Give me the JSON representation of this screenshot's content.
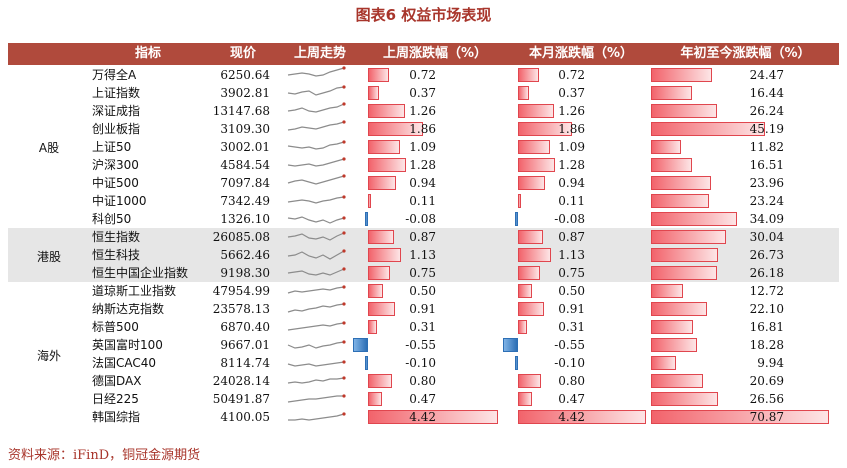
{
  "title": "图表6  权益市场表现",
  "headers": {
    "index": "指标",
    "price": "现价",
    "trend": "上周走势",
    "weekly": "上周涨跌幅（%）",
    "monthly": "本月涨跌幅（%）",
    "ytd": "年初至今涨跌幅（%）"
  },
  "groups": [
    "A股",
    "港股",
    "海外"
  ],
  "rows": [
    {
      "name": "万得全A",
      "price": "6250.64",
      "weekly": "0.72",
      "monthly": "0.72",
      "ytd": "24.47"
    },
    {
      "name": "上证指数",
      "price": "3902.81",
      "weekly": "0.37",
      "monthly": "0.37",
      "ytd": "16.44"
    },
    {
      "name": "深证成指",
      "price": "13147.68",
      "weekly": "1.26",
      "monthly": "1.26",
      "ytd": "26.24"
    },
    {
      "name": "创业板指",
      "price": "3109.30",
      "weekly": "1.86",
      "monthly": "1.86",
      "ytd": "45.19"
    },
    {
      "name": "上证50",
      "price": "3002.01",
      "weekly": "1.09",
      "monthly": "1.09",
      "ytd": "11.82"
    },
    {
      "name": "沪深300",
      "price": "4584.54",
      "weekly": "1.28",
      "monthly": "1.28",
      "ytd": "16.51"
    },
    {
      "name": "中证500",
      "price": "7097.84",
      "weekly": "0.94",
      "monthly": "0.94",
      "ytd": "23.96"
    },
    {
      "name": "中证1000",
      "price": "7342.49",
      "weekly": "0.11",
      "monthly": "0.11",
      "ytd": "23.24"
    },
    {
      "name": "科创50",
      "price": "1326.10",
      "weekly": "-0.08",
      "monthly": "-0.08",
      "ytd": "34.09"
    },
    {
      "name": "恒生指数",
      "price": "26085.08",
      "weekly": "0.87",
      "monthly": "0.87",
      "ytd": "30.04"
    },
    {
      "name": "恒生科技",
      "price": "5662.46",
      "weekly": "1.13",
      "monthly": "1.13",
      "ytd": "26.73"
    },
    {
      "name": "恒生中国企业指数",
      "price": "9198.30",
      "weekly": "0.75",
      "monthly": "0.75",
      "ytd": "26.18"
    },
    {
      "name": "道琼斯工业指数",
      "price": "47954.99",
      "weekly": "0.50",
      "monthly": "0.50",
      "ytd": "12.72"
    },
    {
      "name": "纳斯达克指数",
      "price": "23578.13",
      "weekly": "0.91",
      "monthly": "0.91",
      "ytd": "22.10"
    },
    {
      "name": "标普500",
      "price": "6870.40",
      "weekly": "0.31",
      "monthly": "0.31",
      "ytd": "16.81"
    },
    {
      "name": "英国富时100",
      "price": "9667.01",
      "weekly": "-0.55",
      "monthly": "-0.55",
      "ytd": "18.28"
    },
    {
      "name": "法国CAC40",
      "price": "8114.74",
      "weekly": "-0.10",
      "monthly": "-0.10",
      "ytd": "9.94"
    },
    {
      "name": "德国DAX",
      "price": "24028.14",
      "weekly": "0.80",
      "monthly": "0.80",
      "ytd": "20.69"
    },
    {
      "name": "日经225",
      "price": "50491.87",
      "weekly": "0.47",
      "monthly": "0.47",
      "ytd": "26.56"
    },
    {
      "name": "韩国综指",
      "price": "4100.05",
      "weekly": "4.42",
      "monthly": "4.42",
      "ytd": "70.87"
    }
  ],
  "colors": {
    "header": "#b04a3c",
    "positive": "#f2636b",
    "negative": "#2d6fb5",
    "band": "#e6e6e6"
  },
  "source": "资料来源：iFinD，铜冠金源期货"
}
